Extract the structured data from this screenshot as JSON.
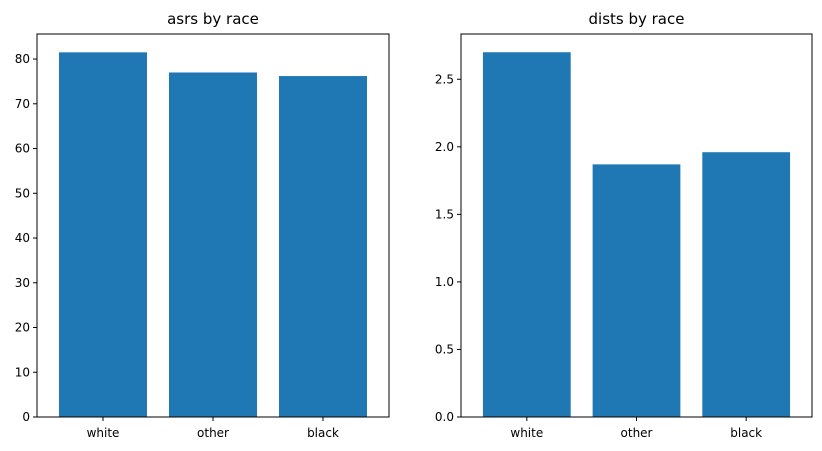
{
  "chart_data": [
    {
      "type": "bar",
      "title": "asrs by race",
      "categories": [
        "white",
        "other",
        "black"
      ],
      "values": [
        81.5,
        77.0,
        76.2
      ],
      "ylim": [
        0,
        85.6
      ],
      "yticks": [
        0,
        10,
        20,
        30,
        40,
        50,
        60,
        70,
        80
      ],
      "ytick_labels": [
        "0",
        "10",
        "20",
        "30",
        "40",
        "50",
        "60",
        "70",
        "80"
      ],
      "xlabel": "",
      "ylabel": "",
      "grid": false,
      "color": "#1f77b4"
    },
    {
      "type": "bar",
      "title": "dists by race",
      "categories": [
        "white",
        "other",
        "black"
      ],
      "values": [
        2.7,
        1.87,
        1.96
      ],
      "ylim": [
        0,
        2.835
      ],
      "yticks": [
        0.0,
        0.5,
        1.0,
        1.5,
        2.0,
        2.5
      ],
      "ytick_labels": [
        "0.0",
        "0.5",
        "1.0",
        "1.5",
        "2.0",
        "2.5"
      ],
      "xlabel": "",
      "ylabel": "",
      "grid": false,
      "color": "#1f77b4"
    }
  ]
}
